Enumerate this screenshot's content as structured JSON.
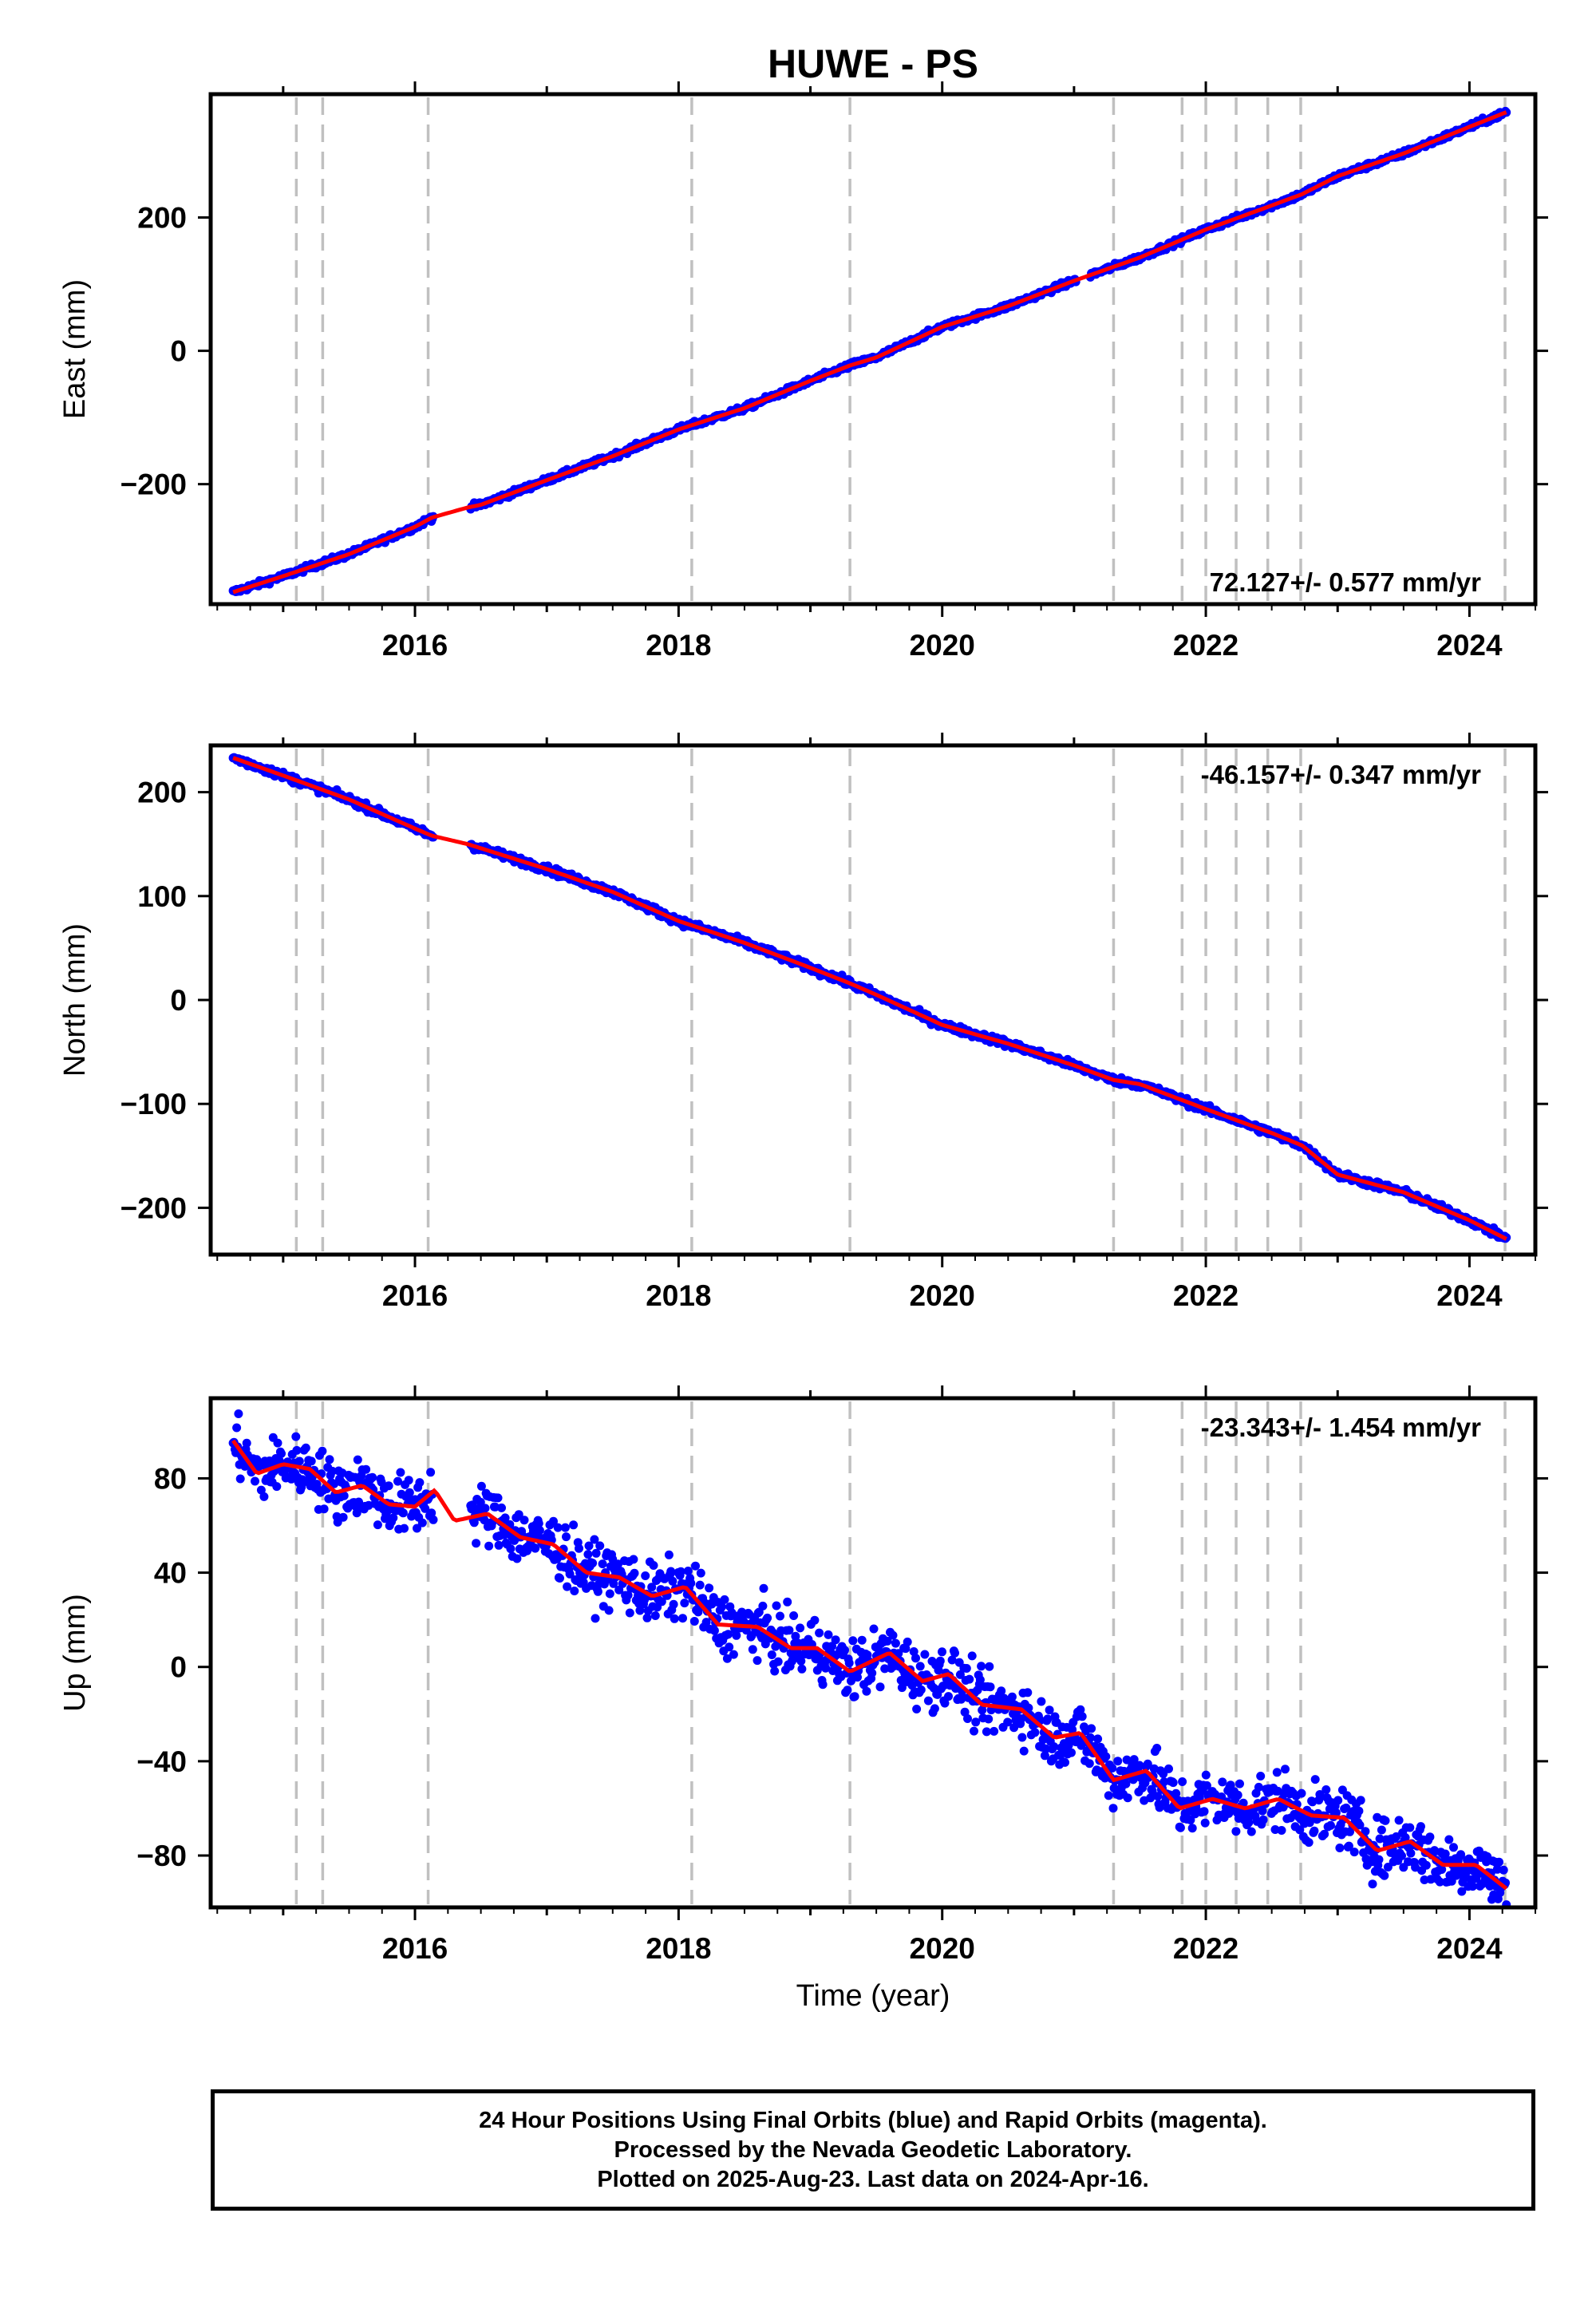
{
  "title": "HUWE - PS",
  "colors": {
    "data": "#0000ff",
    "model": "#ff0000",
    "event": "#c0c0c0",
    "frame": "#000000"
  },
  "xlabel": "Time (year)",
  "chart_data": [
    {
      "type": "scatter",
      "component": "East",
      "ylabel": "East (mm)",
      "rate_label": "72.127+/- 0.577 mm/yr",
      "xlim": [
        2014.45,
        2024.5
      ],
      "ylim": [
        -380,
        385
      ],
      "yticks": [
        -200,
        0,
        200
      ],
      "ytick_labels": [
        "−200",
        "0",
        "200"
      ],
      "xticks": [
        2016,
        2018,
        2020,
        2022,
        2024
      ],
      "xtick_labels": [
        "2016",
        "2018",
        "2020",
        "2022",
        "2024"
      ],
      "x": [
        2014.62,
        2015.0,
        2015.5,
        2016.0,
        2016.13,
        2016.4,
        2016.5,
        2017.0,
        2017.5,
        2018.0,
        2018.5,
        2019.0,
        2019.3,
        2019.5,
        2020.0,
        2020.5,
        2021.0,
        2021.5,
        2022.0,
        2022.5,
        2022.73,
        2023.0,
        2023.5,
        2024.0,
        2024.28
      ],
      "y": [
        -362,
        -338,
        -305,
        -264,
        -250,
        -235,
        -231,
        -194,
        -158,
        -118,
        -86,
        -45,
        -22,
        -10,
        36,
        67,
        105,
        140,
        182,
        218,
        235,
        262,
        296,
        336,
        358
      ],
      "fit": [
        -362,
        -338,
        -305,
        -264,
        -250,
        -235,
        -231,
        -194,
        -158,
        -118,
        -86,
        -45,
        -22,
        -10,
        36,
        67,
        105,
        140,
        182,
        218,
        235,
        262,
        296,
        336,
        358
      ],
      "scatter": 3
    },
    {
      "type": "scatter",
      "component": "North",
      "ylabel": "North (mm)",
      "rate_label": "-46.157+/- 0.347 mm/yr",
      "xlim": [
        2014.45,
        2024.5
      ],
      "ylim": [
        -245,
        245
      ],
      "yticks": [
        -200,
        -100,
        0,
        100,
        200
      ],
      "ytick_labels": [
        "−200",
        "−100",
        "0",
        "100",
        "200"
      ],
      "xticks": [
        2016,
        2018,
        2020,
        2022,
        2024
      ],
      "xtick_labels": [
        "2016",
        "2018",
        "2020",
        "2022",
        "2024"
      ],
      "x": [
        2014.62,
        2015.0,
        2015.5,
        2016.0,
        2016.13,
        2016.4,
        2016.5,
        2017.0,
        2017.5,
        2018.0,
        2018.5,
        2019.0,
        2019.3,
        2019.5,
        2020.0,
        2020.5,
        2021.0,
        2021.3,
        2021.5,
        2022.0,
        2022.5,
        2022.73,
        2023.0,
        2023.5,
        2024.0,
        2024.28
      ],
      "y": [
        233,
        216,
        193,
        165,
        158,
        150,
        146,
        126,
        104,
        76,
        55,
        31,
        16,
        5,
        -24,
        -42,
        -63,
        -77,
        -81,
        -105,
        -128,
        -140,
        -168,
        -185,
        -212,
        -230
      ],
      "fit": [
        233,
        216,
        193,
        165,
        158,
        150,
        146,
        126,
        104,
        76,
        55,
        31,
        16,
        5,
        -24,
        -42,
        -63,
        -77,
        -81,
        -105,
        -128,
        -140,
        -168,
        -185,
        -212,
        -230
      ],
      "scatter": 2.5
    },
    {
      "type": "scatter",
      "component": "Up",
      "ylabel": "Up (mm)",
      "rate_label": "-23.343+/- 1.454 mm/yr",
      "xlim": [
        2014.45,
        2024.5
      ],
      "ylim": [
        -102,
        114
      ],
      "yticks": [
        -80,
        -40,
        0,
        40,
        80
      ],
      "ytick_labels": [
        "−80",
        "−40",
        "0",
        "40",
        "80"
      ],
      "xticks": [
        2016,
        2018,
        2020,
        2022,
        2024
      ],
      "xtick_labels": [
        "2016",
        "2018",
        "2020",
        "2022",
        "2024"
      ],
      "x": [
        2014.62,
        2014.8,
        2015.0,
        2015.2,
        2015.4,
        2015.6,
        2015.8,
        2016.0,
        2016.15,
        2016.3,
        2016.55,
        2016.8,
        2017.05,
        2017.3,
        2017.55,
        2017.8,
        2018.05,
        2018.3,
        2018.6,
        2018.85,
        2019.05,
        2019.3,
        2019.6,
        2019.85,
        2020.05,
        2020.3,
        2020.6,
        2020.85,
        2021.05,
        2021.3,
        2021.55,
        2021.8,
        2022.05,
        2022.3,
        2022.55,
        2022.8,
        2023.05,
        2023.3,
        2023.55,
        2023.8,
        2024.05,
        2024.28
      ],
      "y": [
        96,
        82,
        86,
        84,
        74,
        77,
        69,
        68,
        75,
        62,
        65,
        55,
        52,
        40,
        38,
        30,
        34,
        18,
        17,
        8,
        8,
        -2,
        6,
        -6,
        -3,
        -16,
        -18,
        -30,
        -28,
        -48,
        -44,
        -60,
        -56,
        -60,
        -56,
        -63,
        -64,
        -78,
        -74,
        -84,
        -84,
        -94
      ],
      "fit": [
        96,
        82,
        86,
        84,
        74,
        77,
        69,
        68,
        75,
        62,
        65,
        55,
        52,
        40,
        38,
        30,
        34,
        18,
        17,
        8,
        8,
        -2,
        6,
        -6,
        -3,
        -16,
        -18,
        -30,
        -28,
        -48,
        -44,
        -60,
        -56,
        -60,
        -56,
        -63,
        -64,
        -78,
        -74,
        -84,
        -84,
        -94
      ],
      "scatter": 9
    }
  ],
  "event_lines": [
    2015.1,
    2015.3,
    2016.1,
    2018.1,
    2019.3,
    2021.3,
    2021.82,
    2022.0,
    2022.23,
    2022.47,
    2022.72,
    2024.27
  ],
  "footer": {
    "line1": "24 Hour Positions Using Final Orbits (blue) and Rapid Orbits (magenta).",
    "line2": "Processed by the Nevada Geodetic Laboratory.",
    "line3": "Plotted on 2025-Aug-23. Last data on 2024-Apr-16."
  }
}
